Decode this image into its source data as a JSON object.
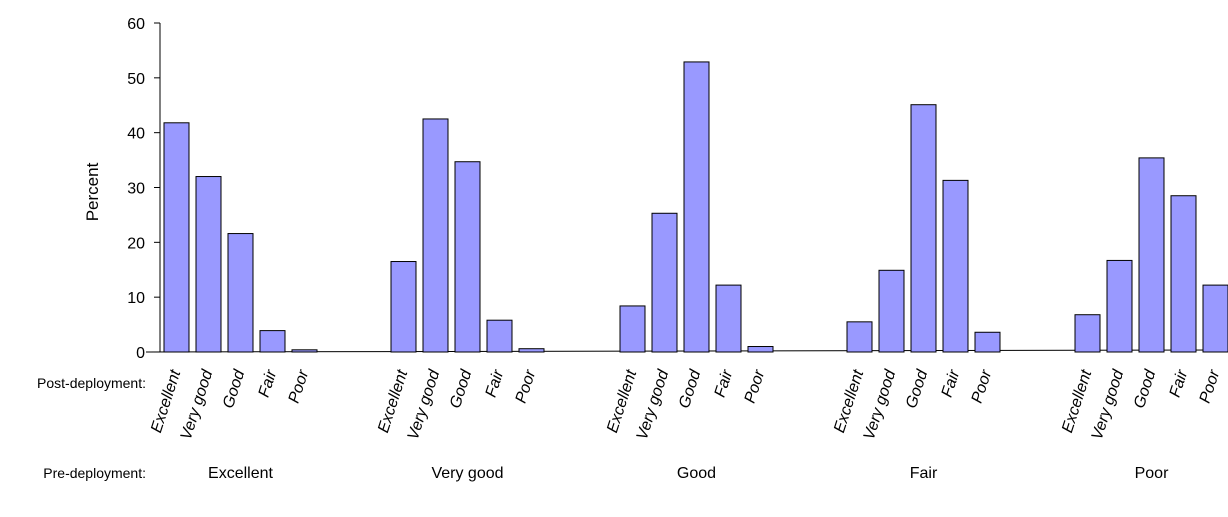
{
  "chart_data": {
    "type": "bar",
    "ylabel": "Percent",
    "ylim": [
      0,
      60
    ],
    "yticks": [
      0,
      10,
      20,
      30,
      40,
      50,
      60
    ],
    "row_label_post": "Post-deployment:",
    "row_label_pre": "Pre-deployment:",
    "groups": [
      {
        "name": "Excellent",
        "categories": [
          "Excellent",
          "Very good",
          "Good",
          "Fair",
          "Poor"
        ],
        "values": [
          41.8,
          32.0,
          21.6,
          3.9,
          0.4
        ]
      },
      {
        "name": "Very good",
        "categories": [
          "Excellent",
          "Very good",
          "Good",
          "Fair",
          "Poor"
        ],
        "values": [
          16.5,
          42.5,
          34.7,
          5.8,
          0.6
        ]
      },
      {
        "name": "Good",
        "categories": [
          "Excellent",
          "Very good",
          "Good",
          "Fair",
          "Poor"
        ],
        "values": [
          8.4,
          25.3,
          52.9,
          12.2,
          1.0
        ]
      },
      {
        "name": "Fair",
        "categories": [
          "Excellent",
          "Very good",
          "Good",
          "Fair",
          "Poor"
        ],
        "values": [
          5.5,
          14.9,
          45.1,
          31.3,
          3.6
        ]
      },
      {
        "name": "Poor",
        "categories": [
          "Excellent",
          "Very good",
          "Good",
          "Fair",
          "Poor"
        ],
        "values": [
          6.8,
          16.7,
          35.4,
          28.5,
          12.2
        ]
      }
    ],
    "bar_color": "#9999ff",
    "bar_edge_color": "#000000",
    "grid": false,
    "legend": "none"
  }
}
